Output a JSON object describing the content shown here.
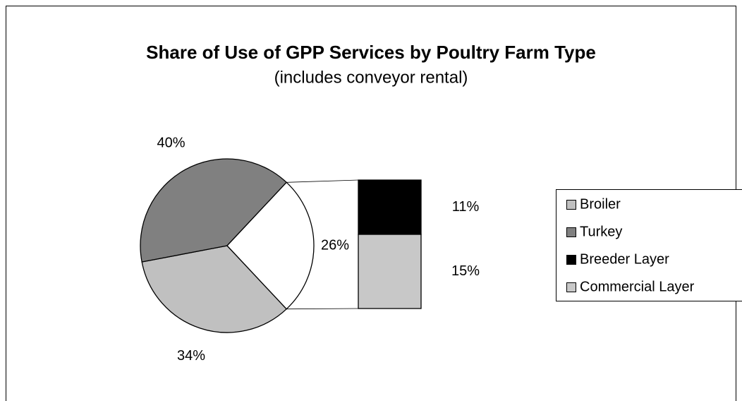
{
  "chart_data": {
    "type": "pie-of-bar",
    "title": "Share of Use of GPP Services by Poultry Farm Type",
    "subtitle": "(includes conveyor rental)",
    "categories": [
      "Broiler",
      "Turkey",
      "Breeder Layer",
      "Commercial Layer"
    ],
    "values": [
      34,
      40,
      11,
      15
    ],
    "value_labels": [
      "34%",
      "40%",
      "11%",
      "15%"
    ],
    "colors": [
      "#c0c0c0",
      "#808080",
      "#000000",
      "#c8c8c8"
    ],
    "secondary_count": 2,
    "other_value": 26,
    "other_value_label": "26%",
    "other_color": "#ffffff",
    "legend": "right"
  }
}
